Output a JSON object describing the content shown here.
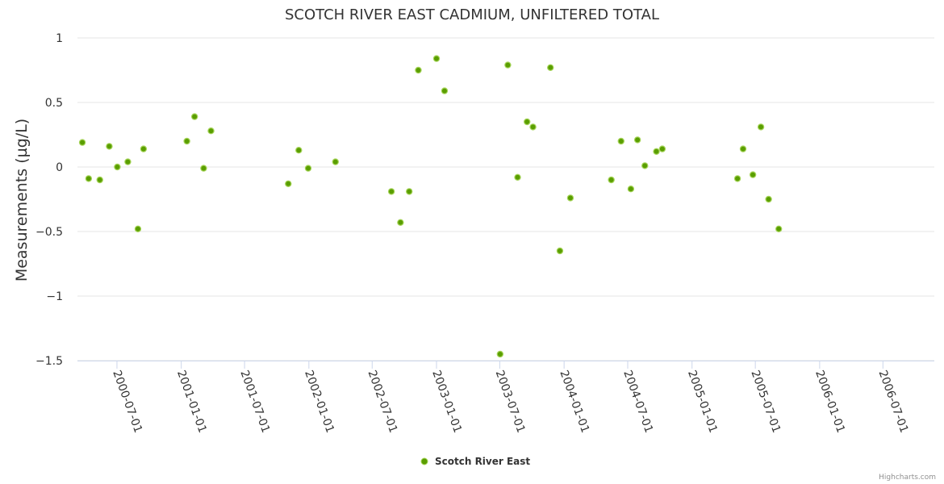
{
  "chart_data": {
    "type": "scatter",
    "title": "SCOTCH RIVER EAST CADMIUM, UNFILTERED TOTAL",
    "ylabel": "Measurements (µg/L)",
    "xlabel": "",
    "ylim": [
      -1.5,
      1
    ],
    "xlim": [
      "2000-03-10",
      "2006-11-25"
    ],
    "y_ticks": [
      {
        "value": 1,
        "label": "1"
      },
      {
        "value": 0.5,
        "label": "0.5"
      },
      {
        "value": 0,
        "label": "0"
      },
      {
        "value": -0.5,
        "label": "−0.5"
      },
      {
        "value": -1,
        "label": "−1"
      },
      {
        "value": -1.5,
        "label": "−1.5"
      }
    ],
    "x_ticks": [
      "2000-07-01",
      "2001-01-01",
      "2001-07-01",
      "2002-01-01",
      "2002-07-01",
      "2003-01-01",
      "2003-07-01",
      "2004-01-01",
      "2004-07-01",
      "2005-01-01",
      "2005-07-01",
      "2006-01-01",
      "2006-07-01"
    ],
    "grid": true,
    "legend_position": "bottom-center",
    "series": [
      {
        "name": "Scotch River East",
        "color": "#5a9e00",
        "points": [
          {
            "x": "2000-03-24",
            "y": 0.19
          },
          {
            "x": "2000-04-11",
            "y": -0.09
          },
          {
            "x": "2000-05-13",
            "y": -0.1
          },
          {
            "x": "2000-06-09",
            "y": 0.16
          },
          {
            "x": "2000-07-02",
            "y": 0.0
          },
          {
            "x": "2000-08-01",
            "y": 0.04
          },
          {
            "x": "2000-08-30",
            "y": -0.48
          },
          {
            "x": "2000-09-15",
            "y": 0.14
          },
          {
            "x": "2001-01-17",
            "y": 0.2
          },
          {
            "x": "2001-02-08",
            "y": 0.39
          },
          {
            "x": "2001-03-06",
            "y": -0.01
          },
          {
            "x": "2001-03-27",
            "y": 0.28
          },
          {
            "x": "2001-11-03",
            "y": -0.13
          },
          {
            "x": "2001-12-03",
            "y": 0.13
          },
          {
            "x": "2001-12-30",
            "y": -0.01
          },
          {
            "x": "2002-03-18",
            "y": 0.04
          },
          {
            "x": "2002-08-25",
            "y": -0.19
          },
          {
            "x": "2002-09-20",
            "y": -0.43
          },
          {
            "x": "2002-10-15",
            "y": -0.19
          },
          {
            "x": "2002-11-10",
            "y": 0.75
          },
          {
            "x": "2003-01-01",
            "y": 0.84
          },
          {
            "x": "2003-01-24",
            "y": 0.59
          },
          {
            "x": "2003-07-02",
            "y": -1.45
          },
          {
            "x": "2003-07-24",
            "y": 0.79
          },
          {
            "x": "2003-08-21",
            "y": -0.08
          },
          {
            "x": "2003-09-17",
            "y": 0.35
          },
          {
            "x": "2003-10-04",
            "y": 0.31
          },
          {
            "x": "2003-11-23",
            "y": 0.77
          },
          {
            "x": "2003-12-20",
            "y": -0.65
          },
          {
            "x": "2004-01-19",
            "y": -0.24
          },
          {
            "x": "2004-05-15",
            "y": -0.1
          },
          {
            "x": "2004-06-12",
            "y": 0.2
          },
          {
            "x": "2004-07-10",
            "y": -0.17
          },
          {
            "x": "2004-07-29",
            "y": 0.21
          },
          {
            "x": "2004-08-19",
            "y": 0.01
          },
          {
            "x": "2004-09-21",
            "y": 0.12
          },
          {
            "x": "2004-10-08",
            "y": 0.14
          },
          {
            "x": "2005-05-11",
            "y": -0.09
          },
          {
            "x": "2005-05-27",
            "y": 0.14
          },
          {
            "x": "2005-06-24",
            "y": -0.06
          },
          {
            "x": "2005-07-17",
            "y": 0.31
          },
          {
            "x": "2005-08-08",
            "y": -0.25
          },
          {
            "x": "2005-09-06",
            "y": -0.48
          }
        ]
      }
    ]
  },
  "credits": "Highcharts.com"
}
